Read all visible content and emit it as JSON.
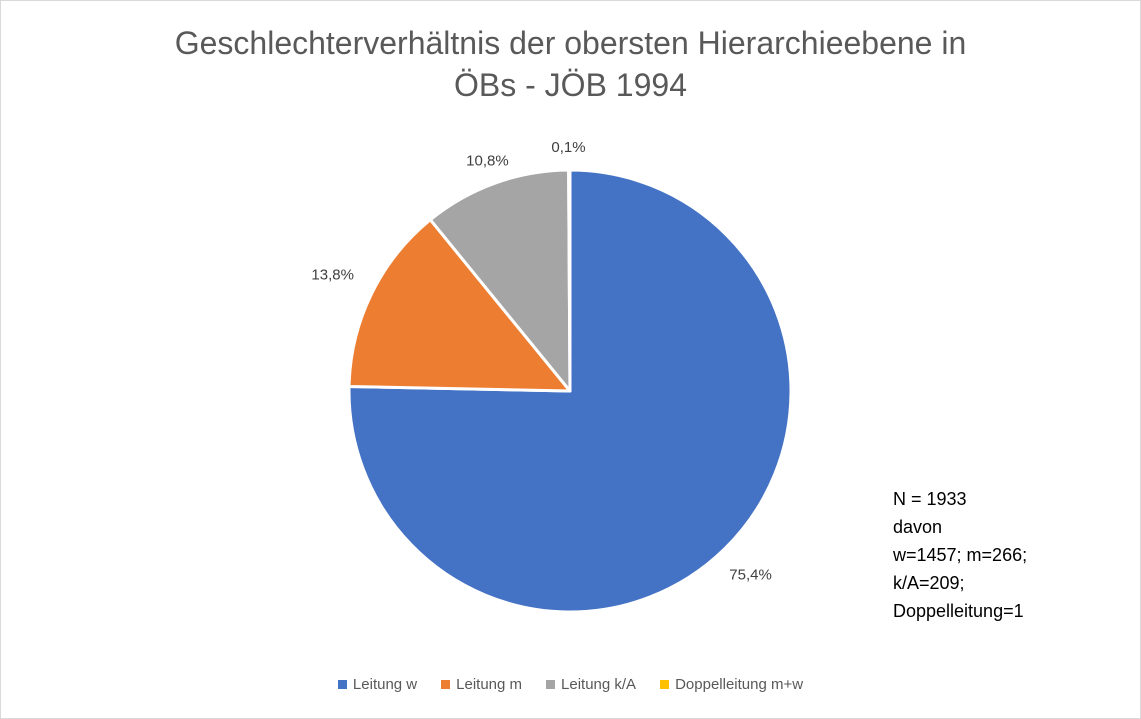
{
  "chart_data": {
    "type": "pie",
    "title": "Geschlechterverhältnis der obersten Hierarchieebene in ÖBs - JÖB 1994",
    "title_lines": [
      "Geschlechterverhältnis der obersten Hierarchieebene in",
      "ÖBs - JÖB 1994"
    ],
    "categories": [
      "Leitung w",
      "Leitung m",
      "Leitung k/A",
      "Doppelleitung m+w"
    ],
    "values": [
      75.4,
      13.8,
      10.8,
      0.1
    ],
    "data_labels": [
      "75,4%",
      "13,8%",
      "10,8%",
      "0,1%"
    ],
    "colors": [
      "#4472C4",
      "#ED7D31",
      "#A5A5A5",
      "#FFC000"
    ],
    "legend_position": "bottom",
    "start_angle": "top, clockwise"
  },
  "annotation": {
    "lines": [
      "N = 1933",
      "davon",
      "w=1457; m=266;",
      "k/A=209;",
      "Doppelleitung=1"
    ]
  }
}
